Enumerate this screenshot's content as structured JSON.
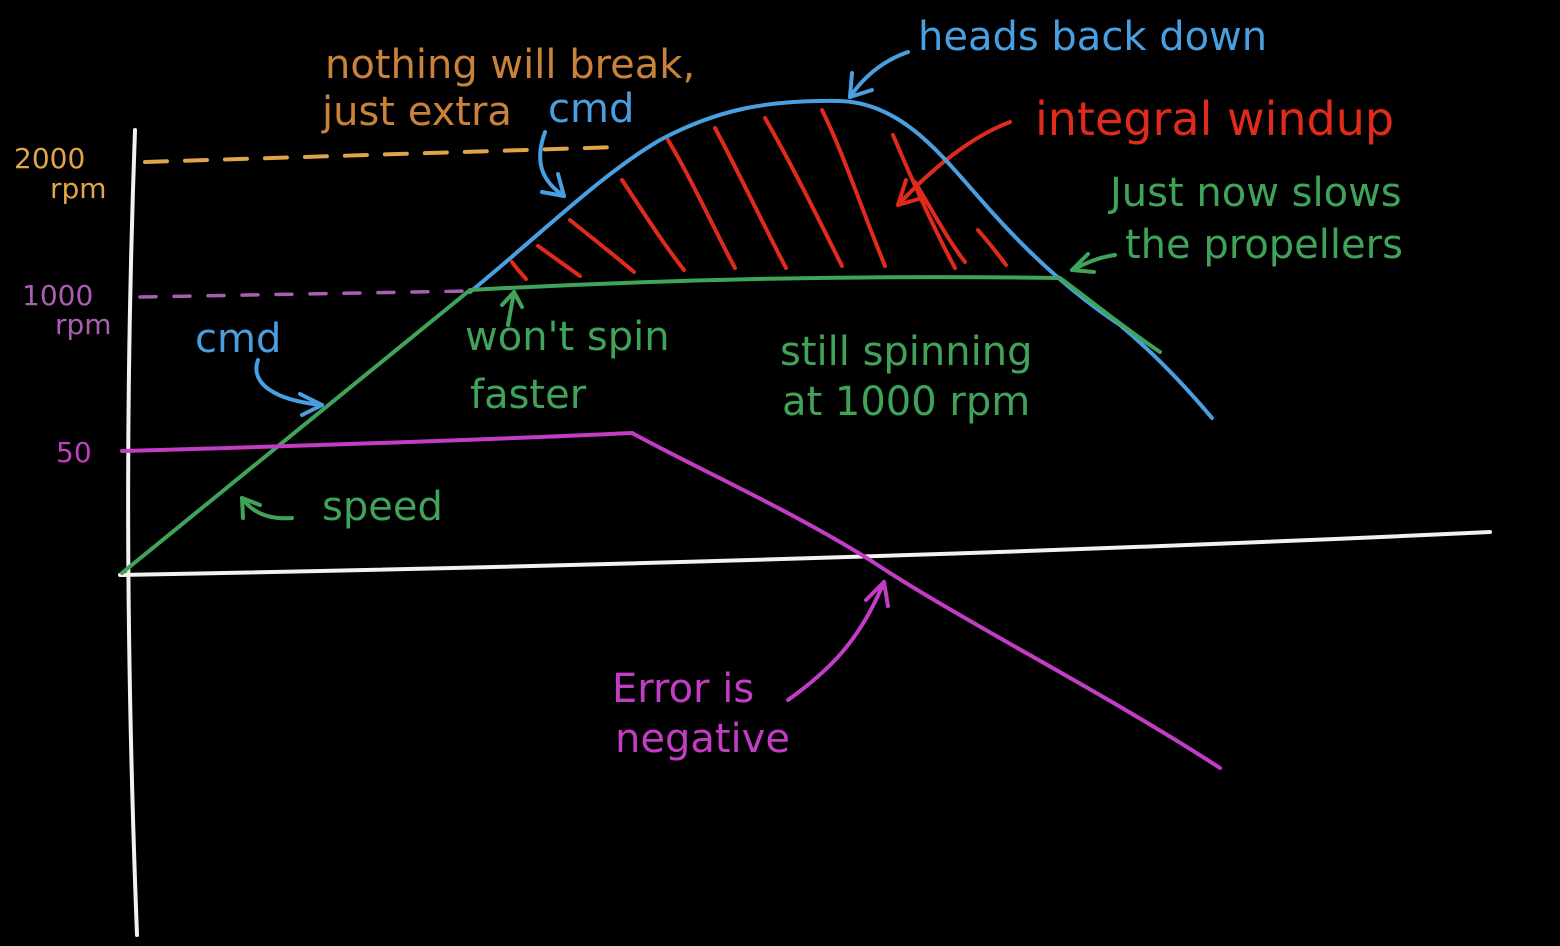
{
  "colors": {
    "background": "#000000",
    "axes": "#f2f2f2",
    "cmd": "#4a9fe0",
    "speed": "#3fa35a",
    "error": "#c23cc4",
    "windup": "#e02a1c",
    "note": "#c9823a",
    "tick_2000": "#e0a44a",
    "tick_1000": "#a85fb0"
  },
  "ticks": {
    "rpm_2000_value": "2000",
    "rpm_2000_unit": "rpm",
    "rpm_1000_value": "1000",
    "rpm_1000_unit": "rpm",
    "fifty_label": "50"
  },
  "labels": {
    "note_line1": "nothing will break,",
    "note_line2": "just extra",
    "note_cmd": "cmd",
    "heads_back_down": "heads back down",
    "integral_windup": "integral windup",
    "slows_line1": "Just now slows",
    "slows_line2": "the propellers",
    "cmd": "cmd",
    "wont_line1": "won't spin",
    "wont_line2": "faster",
    "still_line1": "still spinning",
    "still_line2": "at 1000 rpm",
    "speed": "speed",
    "error_line1": "Error is",
    "error_line2": "negative"
  }
}
